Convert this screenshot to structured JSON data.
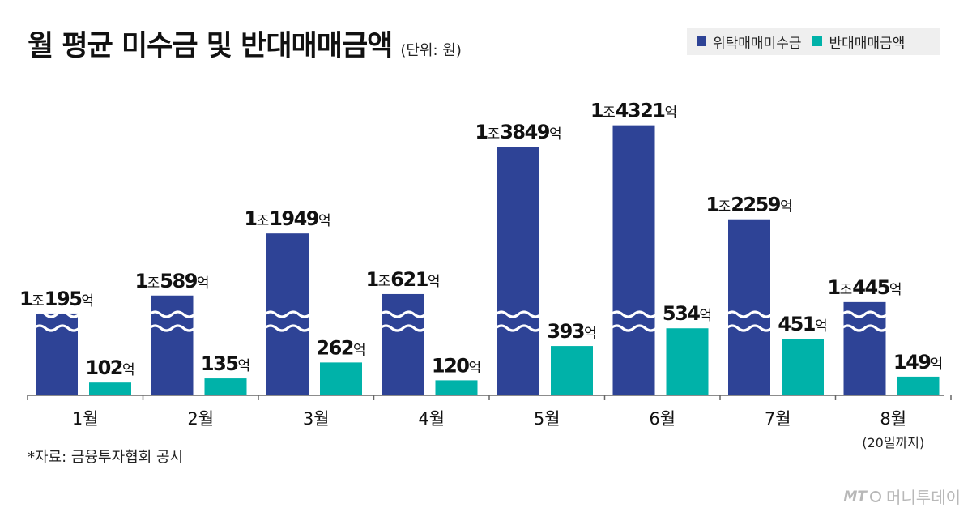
{
  "title": "월 평균 미수금 및 반대매매금액",
  "unit_note": "(단위: 원)",
  "legend": [
    {
      "label": "위탁매매미수금",
      "color": "#2e4396"
    },
    {
      "label": "반대매매금액",
      "color": "#00b2a9"
    }
  ],
  "source": "*자료: 금융투자협회 공시",
  "logo": {
    "mt": "MT",
    "name": "머니투데이"
  },
  "chart_data": {
    "type": "bar",
    "categories": [
      "1월",
      "2월",
      "3월",
      "4월",
      "5월",
      "6월",
      "7월",
      "8월"
    ],
    "category_notes": [
      "",
      "",
      "",
      "",
      "",
      "",
      "",
      "(20일까지)"
    ],
    "series": [
      {
        "name": "위탁매매미수금",
        "color": "#2e4396",
        "values": [
          10195,
          10589,
          11949,
          10621,
          13849,
          14321,
          12259,
          10445
        ],
        "labels": [
          {
            "pre": "1",
            "mid": "조",
            "num": "195",
            "suf": "억"
          },
          {
            "pre": "1",
            "mid": "조",
            "num": "589",
            "suf": "억"
          },
          {
            "pre": "1",
            "mid": "조",
            "num": "1949",
            "suf": "억"
          },
          {
            "pre": "1",
            "mid": "조",
            "num": "621",
            "suf": "억"
          },
          {
            "pre": "1",
            "mid": "조",
            "num": "3849",
            "suf": "억"
          },
          {
            "pre": "1",
            "mid": "조",
            "num": "4321",
            "suf": "억"
          },
          {
            "pre": "1",
            "mid": "조",
            "num": "2259",
            "suf": "억"
          },
          {
            "pre": "1",
            "mid": "조",
            "num": "445",
            "suf": "억"
          }
        ]
      },
      {
        "name": "반대매매금액",
        "color": "#00b2a9",
        "values": [
          102,
          135,
          262,
          120,
          393,
          534,
          451,
          149
        ],
        "labels": [
          {
            "num": "102",
            "suf": "억"
          },
          {
            "num": "135",
            "suf": "억"
          },
          {
            "num": "262",
            "suf": "억"
          },
          {
            "num": "120",
            "suf": "억"
          },
          {
            "num": "393",
            "suf": "억"
          },
          {
            "num": "534",
            "suf": "억"
          },
          {
            "num": "451",
            "suf": "억"
          },
          {
            "num": "149",
            "suf": "억"
          }
        ]
      }
    ],
    "axis_break": true,
    "grid": false,
    "legend_position": "top-right"
  }
}
